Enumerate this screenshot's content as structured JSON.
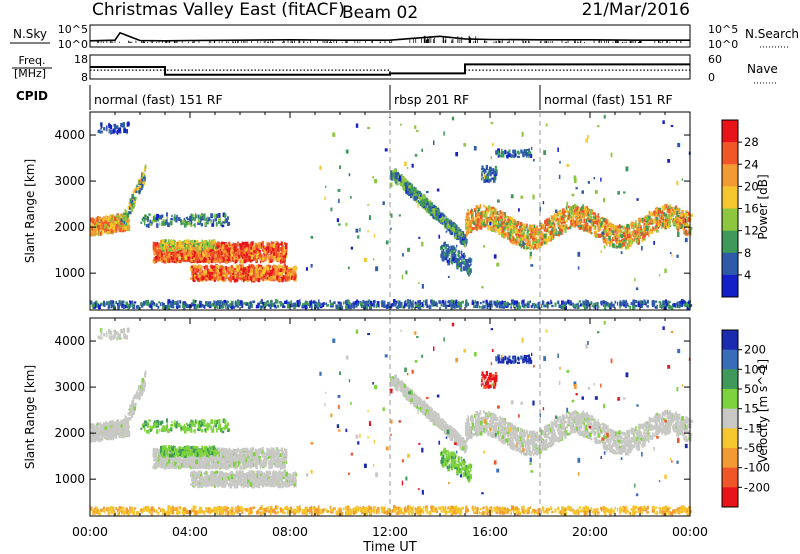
{
  "header": {
    "title": "Christmas Valley East (fitACF)",
    "beam": "Beam 02",
    "date": "21/Mar/2016"
  },
  "chart_data": [
    {
      "type": "line",
      "name_label": "N.Sky",
      "right_label": "N.Search",
      "left_ticks": [
        "10^5",
        "10^0"
      ],
      "right_ticks": [
        "10^5",
        "10^0"
      ],
      "x": [
        0,
        1,
        1.2,
        2,
        3,
        4,
        6,
        8,
        10,
        12,
        13,
        14,
        15,
        16,
        18,
        20,
        22,
        24
      ],
      "values": [
        1.0,
        1.2,
        3.5,
        1.1,
        1.0,
        1.1,
        1.2,
        1.3,
        1.2,
        1.2,
        1.8,
        2.4,
        1.6,
        1.4,
        1.3,
        1.3,
        1.2,
        1.2
      ]
    },
    {
      "type": "line",
      "name_label": "Freq.",
      "unit_label": "[MHz]",
      "right_label": "Nave",
      "left_ticks": [
        "18",
        "8"
      ],
      "right_ticks": [
        "60",
        "0"
      ],
      "series": [
        {
          "x": [
            0,
            3,
            3,
            12,
            12,
            15,
            15,
            24
          ],
          "values": [
            13,
            13,
            9.5,
            9.5,
            10.1,
            10.1,
            14.2,
            14.2
          ]
        },
        {
          "x": [
            0,
            12,
            12,
            15,
            15,
            24
          ],
          "values": [
            11.6,
            11.6,
            10.1,
            10.1,
            11.6,
            11.6
          ]
        }
      ]
    },
    {
      "type": "table",
      "name_label": "CPID",
      "segments": [
        {
          "label": "normal (fast) 151 RF",
          "start": 0,
          "end": 12
        },
        {
          "label": "rbsp 201 RF",
          "start": 12,
          "end": 18
        },
        {
          "label": "normal (fast) 151 RF",
          "start": 18,
          "end": 24
        }
      ]
    },
    {
      "type": "heatmap",
      "ylabel": "Slant Range [km]",
      "yticks": [
        "4000",
        "3000",
        "2000",
        "1000"
      ],
      "ylim": [
        200,
        4500
      ],
      "colorbar_label": "Power [dB]",
      "colorbar_ticks": [
        "28",
        "24",
        "20",
        "16",
        "12",
        "8",
        "4"
      ],
      "colors": [
        "#e8141a",
        "#f0562a",
        "#f39a32",
        "#f6c62f",
        "#8dc63f",
        "#3f9a5a",
        "#2f5aa8",
        "#1320c8"
      ]
    },
    {
      "type": "heatmap",
      "ylabel": "Slant Range [km]",
      "yticks": [
        "4000",
        "3000",
        "2000",
        "1000"
      ],
      "ylim": [
        200,
        4500
      ],
      "colorbar_label": "Velocity [m s^-1]",
      "colorbar_ticks": [
        "200",
        "100",
        "50",
        "15",
        "-15",
        "-50",
        "-100",
        "-200"
      ],
      "colors": [
        "#1a2bb0",
        "#3a6db8",
        "#3f9a5a",
        "#7ed23e",
        "#c8c8c4",
        "#f6c62f",
        "#f39a32",
        "#f0562a",
        "#e8141a"
      ]
    }
  ],
  "time_axis": {
    "label": "Time UT",
    "ticks": [
      "00:00",
      "04:00",
      "08:00",
      "12:00",
      "16:00",
      "20:00",
      "00:00"
    ]
  }
}
